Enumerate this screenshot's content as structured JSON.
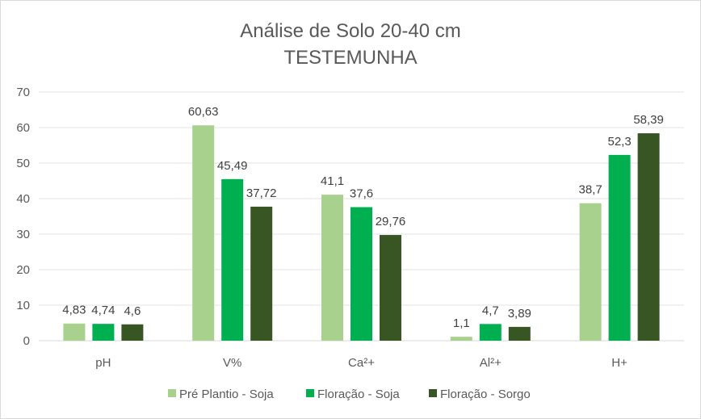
{
  "chart_data": {
    "type": "bar",
    "title": [
      "Análise de Solo 20-40 cm",
      "TESTEMUNHA"
    ],
    "categories": [
      "pH",
      "V%",
      "Ca²+",
      "Al²+",
      "H+"
    ],
    "series": [
      {
        "name": "Pré Plantio - Soja",
        "color": "#a9d18e",
        "values": [
          4.83,
          60.63,
          41.1,
          1.1,
          38.7
        ],
        "labels": [
          "4,83",
          "60,63",
          "41,1",
          "1,1",
          "38,7"
        ]
      },
      {
        "name": "Floração - Soja",
        "color": "#00b050",
        "values": [
          4.74,
          45.49,
          37.6,
          4.7,
          52.3
        ],
        "labels": [
          "4,74",
          "45,49",
          "37,6",
          "4,7",
          "52,3"
        ]
      },
      {
        "name": "Floração - Sorgo",
        "color": "#375623",
        "values": [
          4.6,
          37.72,
          29.76,
          3.89,
          58.39
        ],
        "labels": [
          "4,6",
          "37,72",
          "29,76",
          "3,89",
          "58,39"
        ]
      }
    ],
    "ylim": [
      0,
      70
    ],
    "yticks": [
      0,
      10,
      20,
      30,
      40,
      50,
      60,
      70
    ],
    "grid": true,
    "legend": "bottom"
  }
}
